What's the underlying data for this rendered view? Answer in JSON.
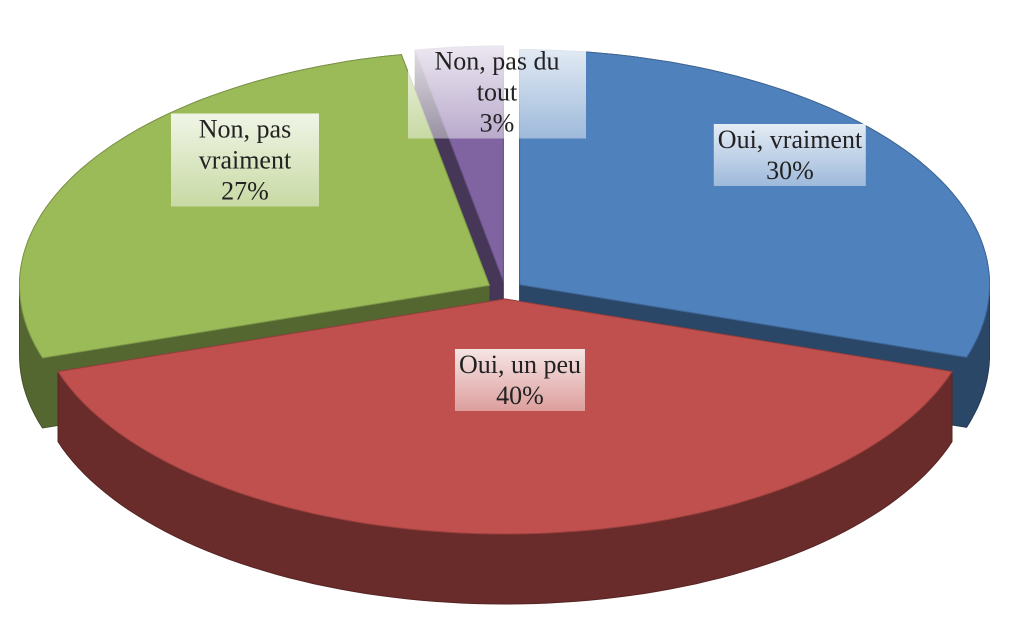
{
  "chart_data": {
    "type": "pie",
    "categories": [
      "Oui, vraiment",
      "Oui, un peu",
      "Non, pas vraiment",
      "Non, pas du tout"
    ],
    "values": [
      30,
      40,
      27,
      3
    ],
    "value_labels": [
      "30%",
      "40%",
      "27%",
      "3%"
    ],
    "colors": [
      "#4f81bd",
      "#c0504d",
      "#9bbb59",
      "#8064a2"
    ],
    "exploded": true,
    "three_d": true
  }
}
